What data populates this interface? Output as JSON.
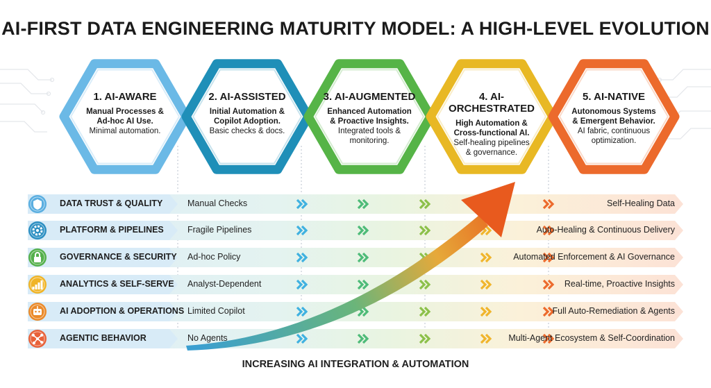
{
  "title": "AI-FIRST DATA ENGINEERING MATURITY MODEL: A HIGH-LEVEL EVOLUTION",
  "footer": "INCREASING AI INTEGRATION & AUTOMATION",
  "colors": {
    "stage_1": "#6bb9e6",
    "stage_2": "#1f8fb8",
    "stage_3": "#56b447",
    "stage_4": "#e8b824",
    "stage_5": "#ec6a2c",
    "trend_arrow": "#e85a1e"
  },
  "stages": [
    {
      "name": "1. AI-AWARE",
      "desc": [
        "Manual Processes &",
        "Ad-hoc AI Use."
      ],
      "sub": [
        "Minimal automation."
      ]
    },
    {
      "name": "2. AI-ASSISTED",
      "desc": [
        "Initial Automation &",
        "Copilot Adoption."
      ],
      "sub": [
        "Basic checks & docs."
      ]
    },
    {
      "name": "3. AI-AUGMENTED",
      "desc": [
        "Enhanced Automation",
        "& Proactive Insights."
      ],
      "sub": [
        "Integrated tools &",
        "monitoring."
      ]
    },
    {
      "name": "4. AI-ORCHESTRATED",
      "desc": [
        "High Automation &",
        "Cross-functional AI."
      ],
      "sub": [
        "Self-healing pipelines",
        "& governance."
      ]
    },
    {
      "name": "5. AI-NATIVE",
      "desc": [
        "Autonomous Systems",
        "& Emergent Behavior."
      ],
      "sub": [
        "AI fabric, continuous",
        "optimization."
      ]
    }
  ],
  "dimensions": [
    {
      "label": "DATA TRUST & QUALITY",
      "icon": "shield-icon",
      "start": "Manual Checks",
      "end": "Self-Healing Data"
    },
    {
      "label": "PLATFORM & PIPELINES",
      "icon": "gear-icon",
      "start": "Fragile Pipelines",
      "end": "Auto-Healing & Continuous Delivery"
    },
    {
      "label": "GOVERNANCE & SECURITY",
      "icon": "lock-icon",
      "start": "Ad-hoc Policy",
      "end": "Automated Enforcement & AI Governance"
    },
    {
      "label": "ANALYTICS & SELF-SERVE",
      "icon": "bar-chart-icon",
      "start": "Analyst-Dependent",
      "end": "Real-time, Proactive Insights"
    },
    {
      "label": "AI ADOPTION & OPERATIONS",
      "icon": "robot-icon",
      "start": "Limited Copilot",
      "end": "Full Auto-Remediation & Agents"
    },
    {
      "label": "AGENTIC BEHAVIOR",
      "icon": "network-icon",
      "start": "No Agents",
      "end": "Multi-Agent Ecosystem & Self-Coordination"
    }
  ]
}
